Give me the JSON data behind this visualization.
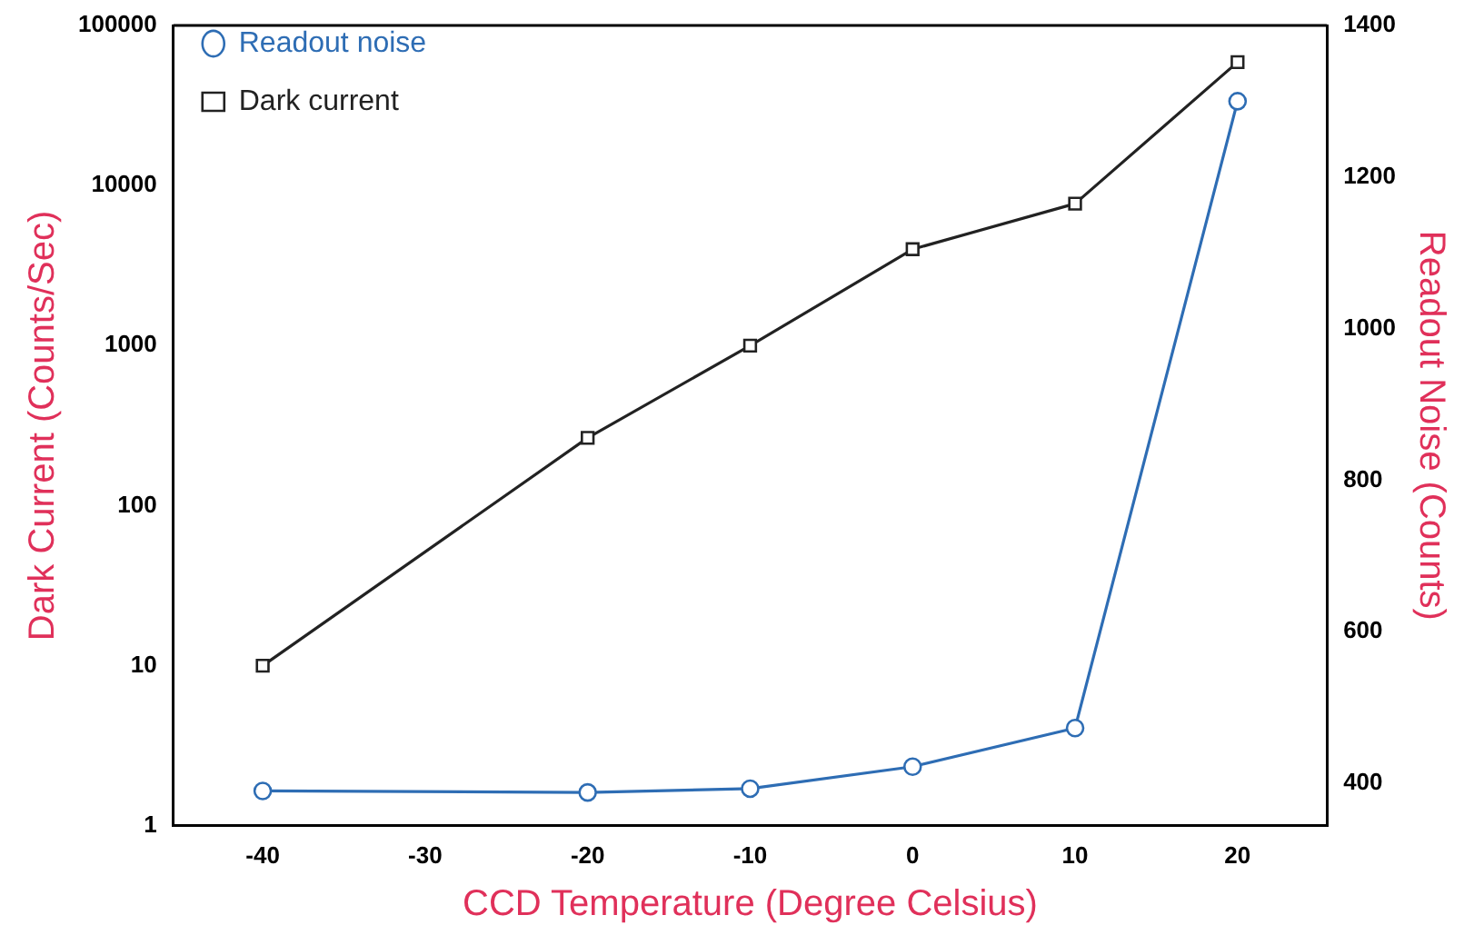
{
  "chart_data": {
    "type": "line",
    "xlabel": "CCD Temperature (Degree Celsius)",
    "ylabel": "Dark Current (Counts/Sec)",
    "y2label": "Readout Noise (Counts)",
    "x": [
      -40,
      -20,
      -10,
      0,
      10,
      20
    ],
    "series": [
      {
        "name": "Readout noise",
        "color": "#2e6db4",
        "values": [
          390,
          388,
          393,
          422,
          473,
          1300
        ],
        "axis": "y2",
        "marker": "circle"
      },
      {
        "name": "Dark current",
        "color": "#222222",
        "values": [
          10,
          265,
          1000,
          4000,
          7700,
          59000
        ],
        "marker": "square"
      }
    ],
    "log": "y",
    "xlim": [
      -45.5,
      25.5
    ],
    "xticks": [
      -40,
      -30,
      -20,
      -10,
      0,
      10,
      20
    ],
    "ylim": [
      1,
      100000
    ],
    "yticks": [
      1,
      10,
      100,
      1000,
      10000,
      100000
    ],
    "y2lim": [
      344,
      1400
    ],
    "y2ticks": [
      400,
      600,
      800,
      1000,
      1200,
      1400
    ],
    "grid": false,
    "legend": "top left",
    "line_style": "solid"
  }
}
